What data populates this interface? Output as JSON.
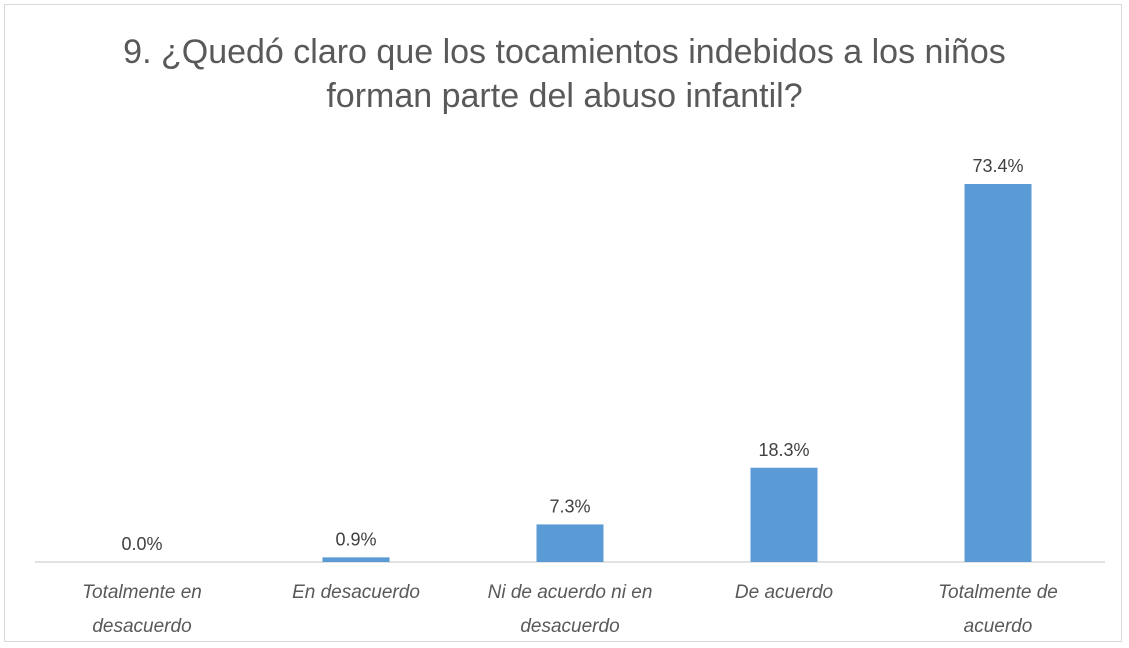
{
  "chart_data": {
    "type": "bar",
    "title": "9. ¿Quedó claro que los tocamientos indebidos a los niños forman parte del abuso infantil?",
    "categories": [
      "Totalmente en desacuerdo",
      "En desacuerdo",
      "Ni de acuerdo ni en desacuerdo",
      "De acuerdo",
      "Totalmente de acuerdo"
    ],
    "values": [
      0,
      0.9,
      7.3,
      18.3,
      73.4
    ],
    "value_labels": [
      "0.0%",
      "0.9%",
      "7.3%",
      "18.3%",
      "73.4%"
    ],
    "color": "#5b9bd5"
  }
}
